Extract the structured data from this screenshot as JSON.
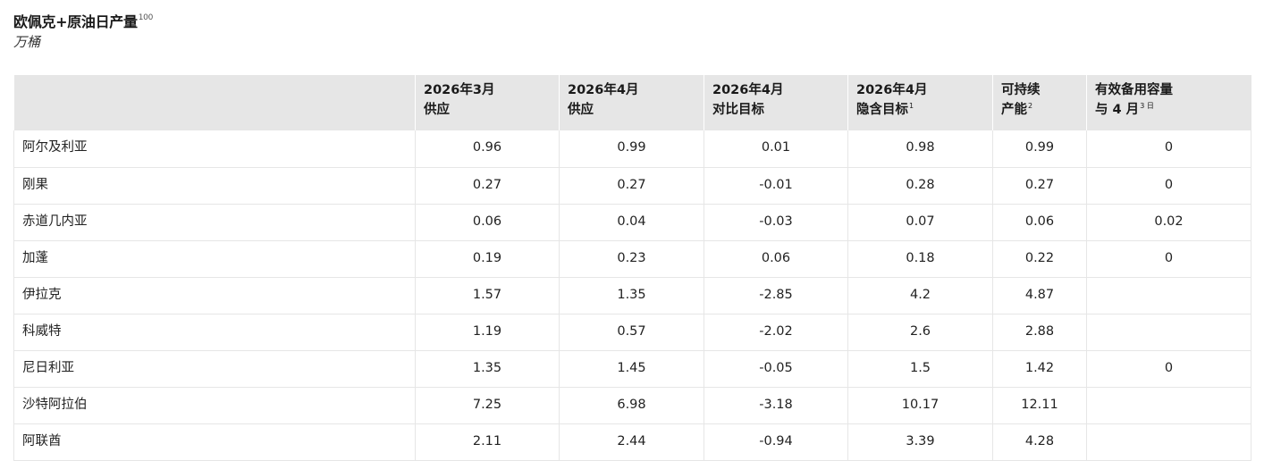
{
  "title": "欧佩克+原油日产量",
  "title_superscript": "100",
  "unit": "万桶",
  "table": {
    "headers": [
      {
        "line1": "",
        "line2": "",
        "sup": ""
      },
      {
        "line1": "2026年3月",
        "line2": "供应",
        "sup": ""
      },
      {
        "line1": "2026年4月",
        "line2": "供应",
        "sup": ""
      },
      {
        "line1": "2026年4月",
        "line2": "对比目标",
        "sup": ""
      },
      {
        "line1": "2026年4月",
        "line2": "隐含目标",
        "sup": "1"
      },
      {
        "line1": "可持续",
        "line2": "产能",
        "sup": "2"
      },
      {
        "line1": "有效备用容量",
        "line2": "与 4 月",
        "sup": "3 日"
      }
    ],
    "rows": [
      {
        "country": "阿尔及利亚",
        "mar_supply": "0.96",
        "apr_supply": "0.99",
        "vs_target": "0.01",
        "implied_target": "0.98",
        "capacity": "0.99",
        "spare": "0"
      },
      {
        "country": "刚果",
        "mar_supply": "0.27",
        "apr_supply": "0.27",
        "vs_target": "-0.01",
        "implied_target": "0.28",
        "capacity": "0.27",
        "spare": "0"
      },
      {
        "country": "赤道几内亚",
        "mar_supply": "0.06",
        "apr_supply": "0.04",
        "vs_target": "-0.03",
        "implied_target": "0.07",
        "capacity": "0.06",
        "spare": "0.02"
      },
      {
        "country": "加蓬",
        "mar_supply": "0.19",
        "apr_supply": "0.23",
        "vs_target": "0.06",
        "implied_target": "0.18",
        "capacity": "0.22",
        "spare": "0"
      },
      {
        "country": "伊拉克",
        "mar_supply": "1.57",
        "apr_supply": "1.35",
        "vs_target": "-2.85",
        "implied_target": "4.2",
        "capacity": "4.87",
        "spare": ""
      },
      {
        "country": "科威特",
        "mar_supply": "1.19",
        "apr_supply": "0.57",
        "vs_target": "-2.02",
        "implied_target": "2.6",
        "capacity": "2.88",
        "spare": ""
      },
      {
        "country": "尼日利亚",
        "mar_supply": "1.35",
        "apr_supply": "1.45",
        "vs_target": "-0.05",
        "implied_target": "1.5",
        "capacity": "1.42",
        "spare": "0"
      },
      {
        "country": "沙特阿拉伯",
        "mar_supply": "7.25",
        "apr_supply": "6.98",
        "vs_target": "-3.18",
        "implied_target": "10.17",
        "capacity": "12.11",
        "spare": ""
      },
      {
        "country": "阿联酋",
        "mar_supply": "2.11",
        "apr_supply": "2.44",
        "vs_target": "-0.94",
        "implied_target": "3.39",
        "capacity": "4.28",
        "spare": ""
      }
    ]
  }
}
